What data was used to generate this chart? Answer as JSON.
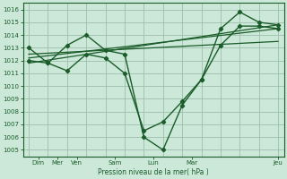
{
  "bg_color": "#cce8d8",
  "grid_color": "#9dbfaa",
  "line_color": "#1a5c2a",
  "xlabel_text": "Pression niveau de la mer( hPa )",
  "ylim": [
    1004.5,
    1016.5
  ],
  "yticks": [
    1005,
    1006,
    1007,
    1008,
    1009,
    1010,
    1011,
    1012,
    1013,
    1014,
    1015,
    1016
  ],
  "xlim": [
    -0.3,
    13.3
  ],
  "xtick_major_pos": [
    0.5,
    1.5,
    2.5,
    4.5,
    6.5,
    8.5,
    13.0
  ],
  "xtick_major_labels": [
    "Dim",
    "Mer",
    "Ven",
    "Sam",
    "Lun",
    "Mar",
    "Jeu"
  ],
  "series1_x": [
    0,
    1,
    2,
    3,
    4,
    5,
    6,
    7,
    8,
    9,
    10,
    11,
    12,
    13
  ],
  "series1_y": [
    1013.0,
    1011.8,
    1013.2,
    1014.0,
    1012.8,
    1012.5,
    1006.0,
    1005.0,
    1008.5,
    1010.5,
    1014.5,
    1015.8,
    1015.0,
    1014.8
  ],
  "series2_x": [
    0,
    1,
    2,
    3,
    4,
    5,
    6,
    7,
    8,
    9,
    10,
    11,
    12,
    13
  ],
  "series2_y": [
    1012.0,
    1011.8,
    1011.2,
    1012.5,
    1012.2,
    1011.0,
    1006.5,
    1007.2,
    1008.8,
    1010.5,
    1013.2,
    1014.7,
    1014.7,
    1014.5
  ],
  "trend1_x": [
    0,
    13
  ],
  "trend1_y": [
    1011.8,
    1014.8
  ],
  "trend2_x": [
    0,
    13
  ],
  "trend2_y": [
    1012.2,
    1014.5
  ],
  "trend3_x": [
    0,
    13
  ],
  "trend3_y": [
    1012.5,
    1013.5
  ]
}
